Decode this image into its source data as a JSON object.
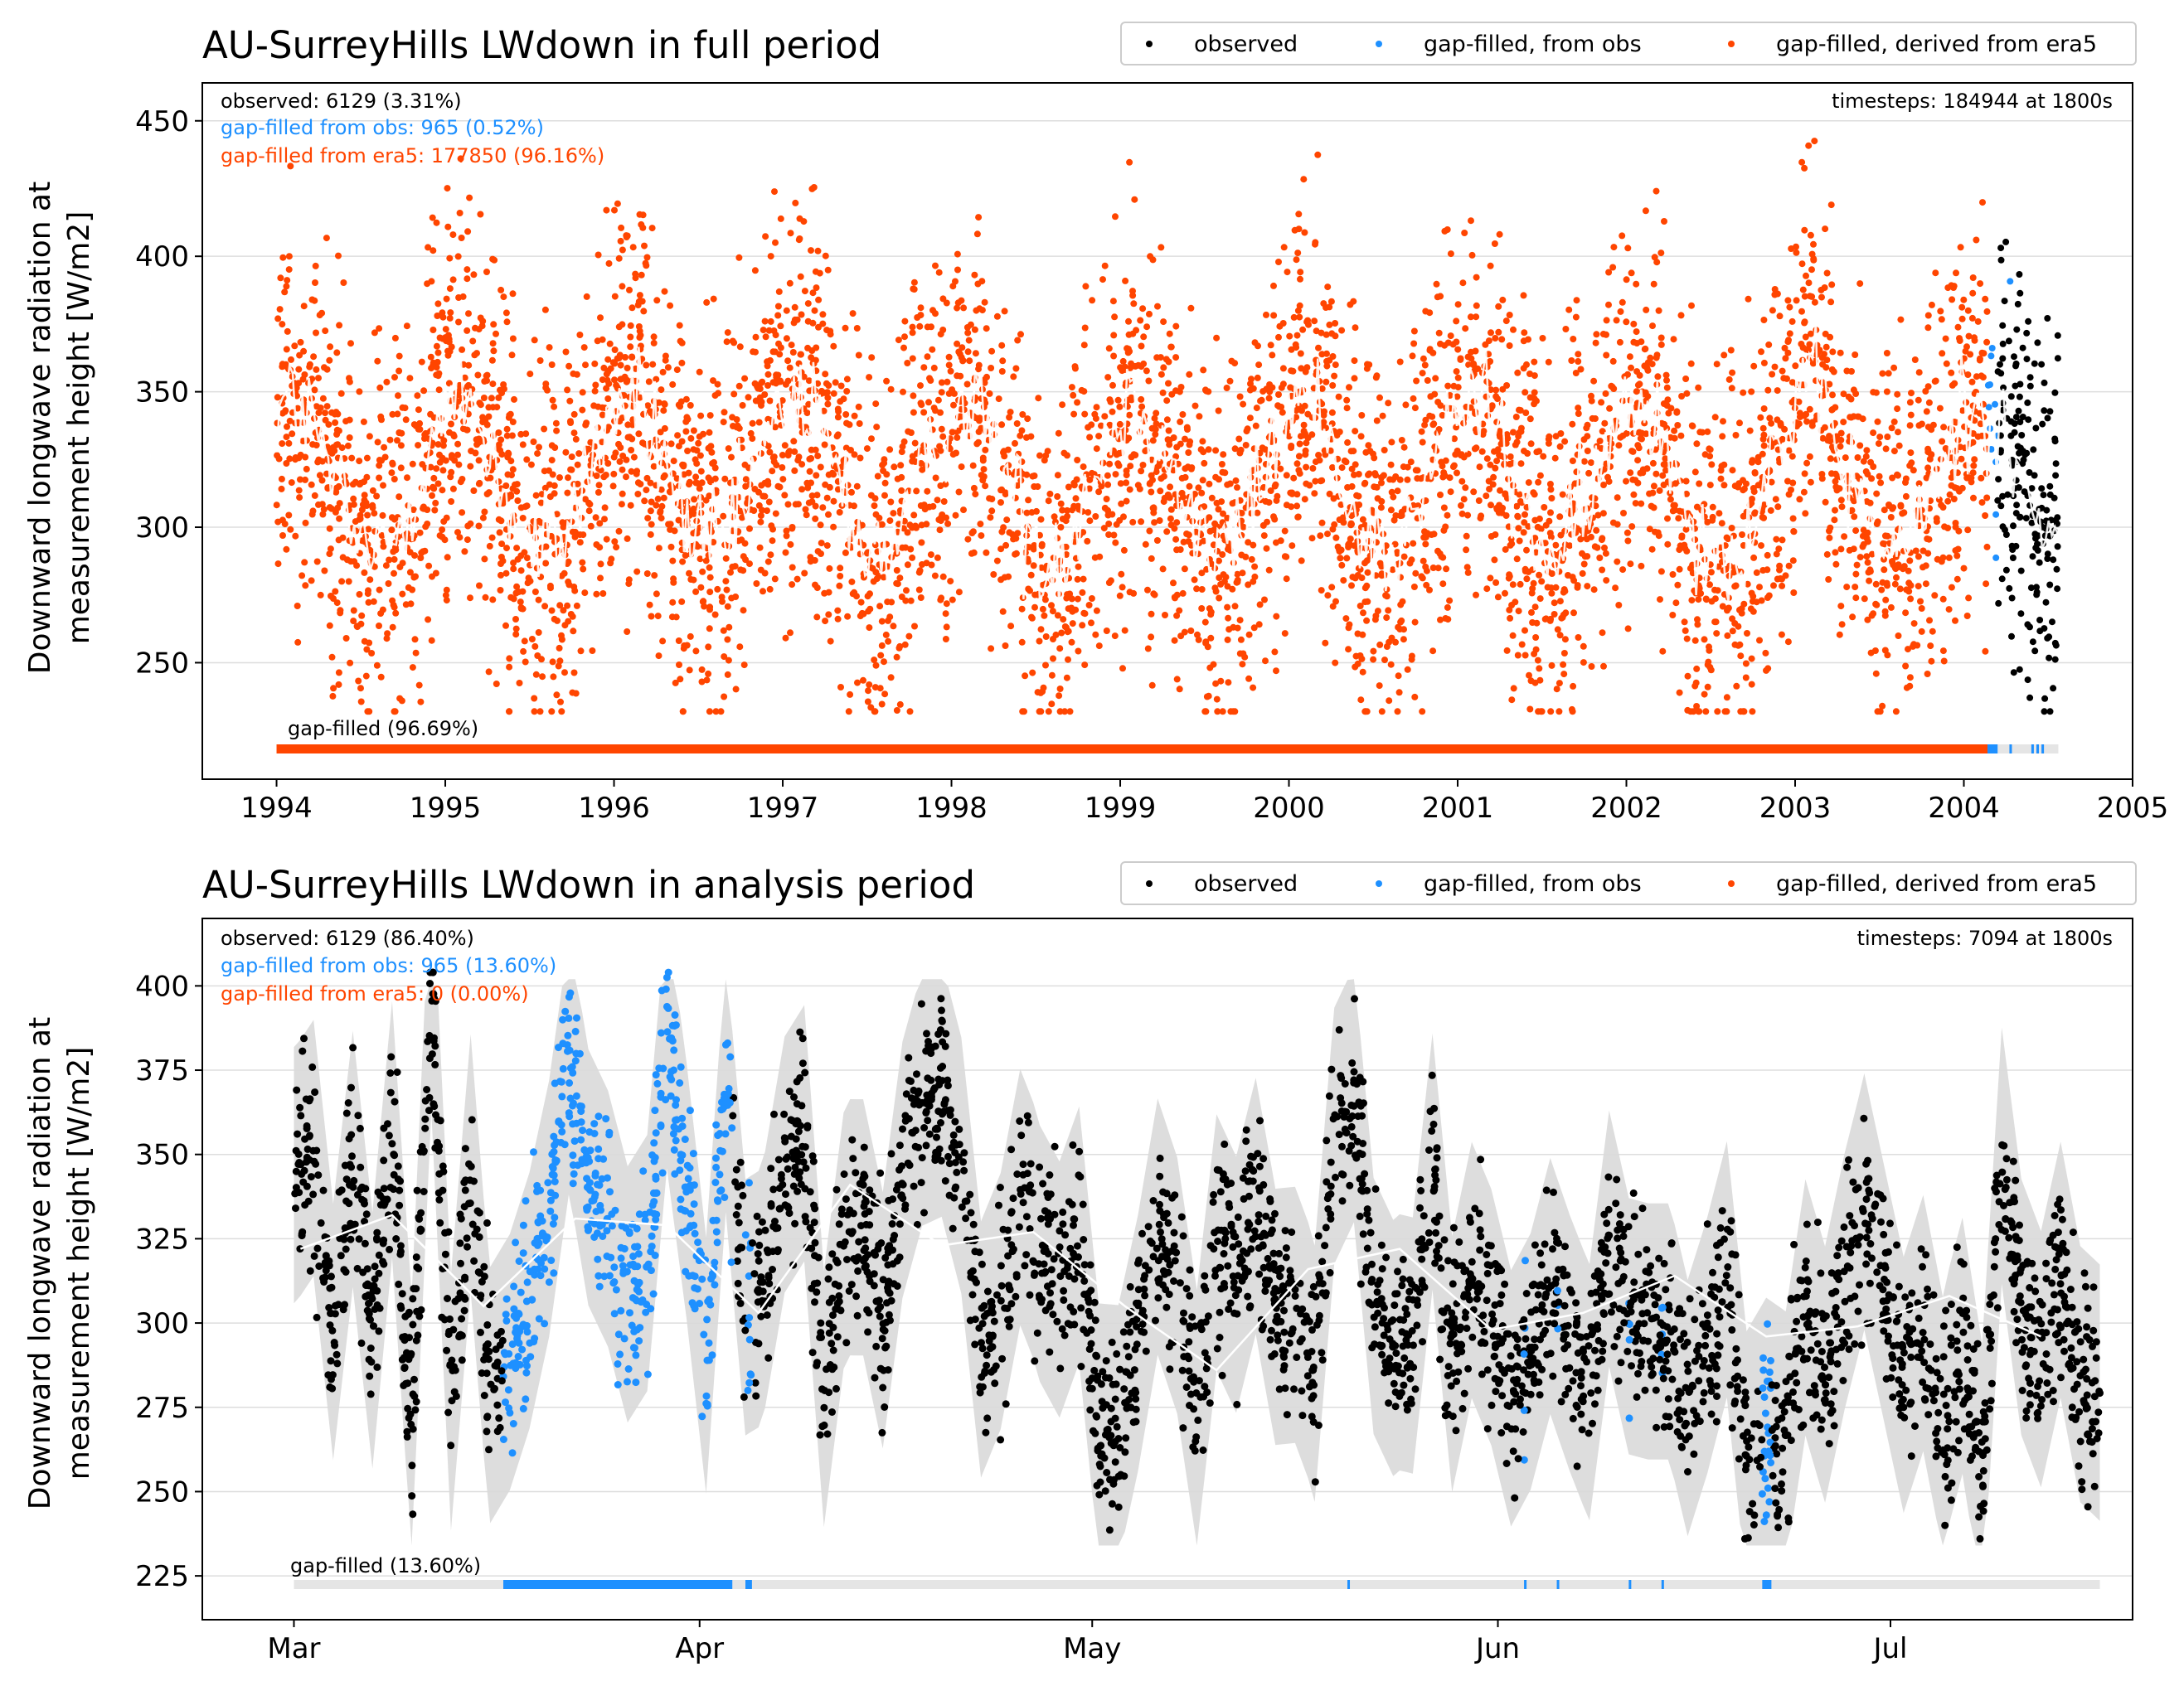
{
  "colors": {
    "observed": "#000000",
    "gapfill_obs": "#1e90ff",
    "gapfill_era5": "#ff4500",
    "mean_line": "#ffffff",
    "band": "#d9d9d9",
    "grid": "#dddddd",
    "bar_bg": "#e5e5e5"
  },
  "chart_data": [
    {
      "type": "scatter",
      "title": "AU-SurreyHills LWdown in full period",
      "ylabel_line1": "Downward longwave radiation at",
      "ylabel_line2": "measurement height [W/m2]",
      "legend": {
        "placement": "top-right",
        "entries": [
          "observed",
          "gap-filled, from obs",
          "gap-filled, derived from era5"
        ]
      },
      "stats": {
        "observed": "observed: 6129 (3.31%)",
        "gapfill_obs": "gap-filled from obs: 965 (0.52%)",
        "gapfill_era5": "gap-filled from era5: 177850 (96.16%)",
        "timesteps": "timesteps: 184944 at 1800s"
      },
      "gapfill_label": "gap-filled (96.69%)",
      "x_range": [
        1993.56,
        2005.0
      ],
      "ylim": [
        207,
        464
      ],
      "xticks": [
        1994,
        1995,
        1996,
        1997,
        1998,
        1999,
        2000,
        2001,
        2002,
        2003,
        2004,
        2005
      ],
      "xtick_labels": [
        "1994",
        "1995",
        "1996",
        "1997",
        "1998",
        "1999",
        "2000",
        "2001",
        "2002",
        "2003",
        "2004",
        "2005"
      ],
      "yticks": [
        250,
        300,
        350,
        400,
        450
      ],
      "ytick_labels": [
        "250",
        "300",
        "350",
        "400",
        "450"
      ],
      "data_start": 1994.0,
      "era5_end": 2004.14,
      "obs_end": 2004.56,
      "series_model": {
        "annual_mean": 318,
        "annual_amplitude": 28,
        "peak_time_of_year": 0.08,
        "spread_low": 65,
        "spread_high": 60
      },
      "gapfill_bar": [
        {
          "from": 1994.0,
          "to": 2004.14,
          "source": "era5"
        },
        {
          "from": 2004.14,
          "to": 2004.56,
          "source": "mixed"
        }
      ]
    },
    {
      "type": "scatter",
      "title": "AU-SurreyHills LWdown in analysis period",
      "ylabel_line1": "Downward longwave radiation at",
      "ylabel_line2": "measurement height [W/m2]",
      "legend": {
        "placement": "top-right",
        "entries": [
          "observed",
          "gap-filled, from obs",
          "gap-filled, derived from era5"
        ]
      },
      "stats": {
        "observed": "observed: 6129 (86.40%)",
        "gapfill_obs": "gap-filled from obs: 965 (13.60%)",
        "gapfill_era5": "gap-filled from era5: 0 (0.00%)",
        "timesteps": "timesteps: 7094 at 1800s"
      },
      "gapfill_label": "gap-filled (13.60%)",
      "x_range_days": [
        -1,
        146.5
      ],
      "ylim": [
        212,
        420
      ],
      "xticks_day": [
        6,
        37,
        67,
        98,
        128
      ],
      "xtick_labels": [
        "Mar",
        "Apr",
        "May",
        "Jun",
        "Jul"
      ],
      "yticks": [
        225,
        250,
        275,
        300,
        325,
        350,
        375,
        400
      ],
      "ytick_labels": [
        "225",
        "250",
        "275",
        "300",
        "325",
        "350",
        "375",
        "400"
      ],
      "data_days": [
        6.0,
        144.0
      ],
      "weekly_mean": [
        {
          "day": 6.5,
          "value": 322
        },
        {
          "day": 13.5,
          "value": 332
        },
        {
          "day": 20.5,
          "value": 305
        },
        {
          "day": 27.5,
          "value": 331
        },
        {
          "day": 34.5,
          "value": 329
        },
        {
          "day": 41.5,
          "value": 303
        },
        {
          "day": 48.5,
          "value": 341
        },
        {
          "day": 55.5,
          "value": 323
        },
        {
          "day": 62.5,
          "value": 327
        },
        {
          "day": 69.5,
          "value": 305
        },
        {
          "day": 76.5,
          "value": 286
        },
        {
          "day": 83.5,
          "value": 316
        },
        {
          "day": 90.5,
          "value": 322
        },
        {
          "day": 97.5,
          "value": 298
        },
        {
          "day": 104.5,
          "value": 303
        },
        {
          "day": 111.5,
          "value": 314
        },
        {
          "day": 118.5,
          "value": 296
        },
        {
          "day": 125.5,
          "value": 299
        },
        {
          "day": 132.5,
          "value": 308
        },
        {
          "day": 139.5,
          "value": 296
        }
      ],
      "obs_gap_intervals": [
        {
          "from": 22.0,
          "to": 39.5
        },
        {
          "from": 40.5,
          "to": 41.0
        },
        {
          "from": 86.5,
          "to": 86.6
        },
        {
          "from": 100.0,
          "to": 100.1
        },
        {
          "from": 102.5,
          "to": 102.6
        },
        {
          "from": 108.0,
          "to": 108.1
        },
        {
          "from": 110.5,
          "to": 110.6
        },
        {
          "from": 118.2,
          "to": 118.9
        }
      ]
    }
  ]
}
